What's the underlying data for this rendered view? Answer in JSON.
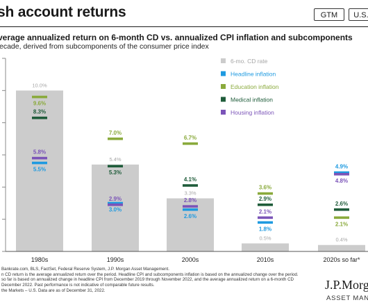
{
  "header": {
    "title": "sh account returns",
    "tag_gtm": "GTM",
    "tag_region": "U.S."
  },
  "chart_data": {
    "type": "bar",
    "title": "verage annualized return on 6-month CD vs. annualized CPI inflation and subcomponents",
    "subtitle": "ecade, derived from subcomponents of the consumer price index",
    "categories": [
      "1980s",
      "1990s",
      "2000s",
      "2010s",
      "2020s so far*"
    ],
    "ylim": [
      0,
      12
    ],
    "grid": false,
    "legend_position": "top-right",
    "bar_series": {
      "name": "6-mo. CD rate",
      "color": "#cccccc",
      "label_color": "#a6a6a6",
      "values": [
        10.0,
        5.4,
        3.3,
        0.5,
        0.4
      ],
      "labels": [
        "10.0%",
        "5.4%",
        "3.3%",
        "0.5%",
        "0.4%"
      ]
    },
    "series": [
      {
        "name": "Headline inflation",
        "color": "#1e9ae0",
        "values": [
          5.5,
          3.0,
          2.6,
          1.8,
          4.9
        ],
        "labels": [
          "5.5%",
          "3.0%",
          "2.6%",
          "1.8%",
          "4.9%"
        ]
      },
      {
        "name": "Education inflation",
        "color": "#8aaa3c",
        "values": [
          9.6,
          7.0,
          6.7,
          3.6,
          2.1
        ],
        "labels": [
          "9.6%",
          "7.0%",
          "6.7%",
          "3.6%",
          "2.1%"
        ]
      },
      {
        "name": "Medical inflation",
        "color": "#1f5c3a",
        "values": [
          8.3,
          5.3,
          4.1,
          2.9,
          2.6
        ],
        "labels": [
          "8.3%",
          "5.3%",
          "4.1%",
          "2.9%",
          "2.6%"
        ]
      },
      {
        "name": "Housing inflation",
        "color": "#7b54b8",
        "values": [
          5.8,
          2.9,
          2.8,
          2.1,
          4.8
        ],
        "labels": [
          "5.8%",
          "2.9%",
          "2.8%",
          "2.1%",
          "4.8%"
        ]
      }
    ]
  },
  "footnotes": [
    "Bankrate.com, BLS, FactSet, Federal Reserve System, J.P. Morgan Asset Management.",
    "n CD return is the average annualized return over the period. Headline CPI and subcomponents inflation is based on the annualized change over the period.",
    "so far is based on annualized change in headline CPI from December 2019 through November 2022, and the average annualized return on a 6-month CD",
    "December 2022. Past performance is not indicative of comparable future results.",
    "the Markets – U.S. Data are as of December 31, 2022."
  ],
  "branding": {
    "logo_text": "J.P.Morg",
    "logo_sub": "ASSET MANAGE"
  }
}
